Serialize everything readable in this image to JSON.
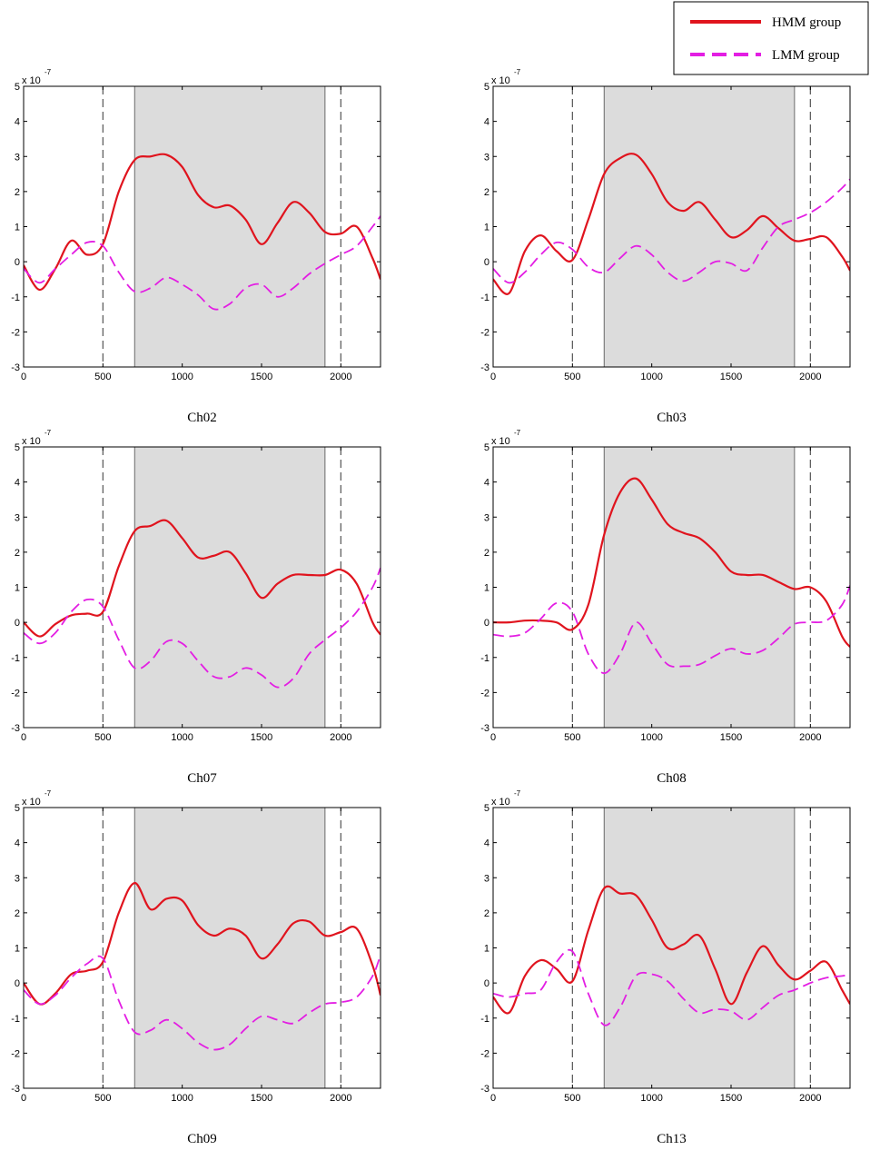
{
  "legend": {
    "entries": [
      {
        "name": "HMM group",
        "color": "#e0141e",
        "style": "solid"
      },
      {
        "name": "LMM group",
        "color": "#e31ee3",
        "style": "dashed"
      }
    ],
    "placement": "top-right"
  },
  "chart_data": [
    {
      "type": "line",
      "title": "Ch02",
      "y_exponent_label": "x 10",
      "y_exponent": "-7",
      "xlim": [
        0,
        2250
      ],
      "ylim": [
        -3,
        5
      ],
      "x_ticks": [
        0,
        500,
        1000,
        1500,
        2000
      ],
      "y_ticks": [
        -3,
        -2,
        -1,
        0,
        1,
        2,
        3,
        4,
        5
      ],
      "shaded_region": [
        700,
        1900
      ],
      "vertical_dashed_lines": [
        500,
        2000
      ],
      "grid": false,
      "series": [
        {
          "name": "HMM group",
          "x": [
            0,
            100,
            200,
            300,
            400,
            500,
            600,
            700,
            800,
            900,
            1000,
            1100,
            1200,
            1300,
            1400,
            1500,
            1600,
            1700,
            1800,
            1900,
            2000,
            2100,
            2200,
            2250
          ],
          "y": [
            -0.1,
            -0.8,
            -0.2,
            0.6,
            0.2,
            0.5,
            2.0,
            2.9,
            3.0,
            3.05,
            2.7,
            1.9,
            1.55,
            1.6,
            1.2,
            0.5,
            1.1,
            1.7,
            1.4,
            0.85,
            0.8,
            1.0,
            0.1,
            -0.5
          ]
        },
        {
          "name": "LMM group",
          "x": [
            0,
            100,
            200,
            300,
            400,
            500,
            600,
            700,
            800,
            900,
            1000,
            1100,
            1200,
            1300,
            1400,
            1500,
            1600,
            1700,
            1800,
            1900,
            2000,
            2100,
            2200,
            2250
          ],
          "y": [
            -0.2,
            -0.6,
            -0.2,
            0.2,
            0.55,
            0.45,
            -0.3,
            -0.85,
            -0.75,
            -0.45,
            -0.65,
            -0.95,
            -1.35,
            -1.2,
            -0.75,
            -0.65,
            -1.0,
            -0.75,
            -0.35,
            -0.05,
            0.2,
            0.45,
            1.0,
            1.3
          ]
        }
      ]
    },
    {
      "type": "line",
      "title": "Ch03",
      "y_exponent_label": "x 10",
      "y_exponent": "-7",
      "xlim": [
        0,
        2250
      ],
      "ylim": [
        -3,
        5
      ],
      "x_ticks": [
        0,
        500,
        1000,
        1500,
        2000
      ],
      "y_ticks": [
        -3,
        -2,
        -1,
        0,
        1,
        2,
        3,
        4,
        5
      ],
      "shaded_region": [
        700,
        1900
      ],
      "vertical_dashed_lines": [
        500,
        2000
      ],
      "grid": false,
      "series": [
        {
          "name": "HMM group",
          "x": [
            0,
            100,
            200,
            300,
            400,
            500,
            600,
            700,
            800,
            900,
            1000,
            1100,
            1200,
            1300,
            1400,
            1500,
            1600,
            1700,
            1800,
            1900,
            2000,
            2100,
            2200,
            2250
          ],
          "y": [
            -0.5,
            -0.9,
            0.3,
            0.75,
            0.3,
            0.05,
            1.2,
            2.5,
            2.95,
            3.05,
            2.5,
            1.7,
            1.45,
            1.7,
            1.2,
            0.7,
            0.9,
            1.3,
            0.95,
            0.6,
            0.65,
            0.7,
            0.15,
            -0.25
          ]
        },
        {
          "name": "LMM group",
          "x": [
            0,
            100,
            200,
            300,
            400,
            500,
            600,
            700,
            800,
            900,
            1000,
            1100,
            1200,
            1300,
            1400,
            1500,
            1600,
            1700,
            1800,
            1900,
            2000,
            2100,
            2200,
            2250
          ],
          "y": [
            -0.2,
            -0.6,
            -0.3,
            0.2,
            0.55,
            0.35,
            -0.15,
            -0.3,
            0.1,
            0.45,
            0.2,
            -0.3,
            -0.55,
            -0.3,
            0.0,
            -0.05,
            -0.25,
            0.4,
            1.0,
            1.2,
            1.4,
            1.7,
            2.1,
            2.35
          ]
        }
      ]
    },
    {
      "type": "line",
      "title": "Ch07",
      "y_exponent_label": "x 10",
      "y_exponent": "-7",
      "xlim": [
        0,
        2250
      ],
      "ylim": [
        -3,
        5
      ],
      "x_ticks": [
        0,
        500,
        1000,
        1500,
        2000
      ],
      "y_ticks": [
        -3,
        -2,
        -1,
        0,
        1,
        2,
        3,
        4,
        5
      ],
      "shaded_region": [
        700,
        1900
      ],
      "vertical_dashed_lines": [
        500,
        2000
      ],
      "grid": false,
      "series": [
        {
          "name": "HMM group",
          "x": [
            0,
            100,
            200,
            300,
            400,
            500,
            600,
            700,
            800,
            900,
            1000,
            1100,
            1200,
            1300,
            1400,
            1500,
            1600,
            1700,
            1800,
            1900,
            2000,
            2100,
            2200,
            2250
          ],
          "y": [
            0.0,
            -0.4,
            -0.05,
            0.2,
            0.25,
            0.3,
            1.6,
            2.6,
            2.75,
            2.9,
            2.4,
            1.85,
            1.9,
            2.0,
            1.4,
            0.7,
            1.1,
            1.35,
            1.35,
            1.35,
            1.5,
            1.1,
            0.0,
            -0.35
          ]
        },
        {
          "name": "LMM group",
          "x": [
            0,
            100,
            200,
            300,
            400,
            500,
            600,
            700,
            800,
            900,
            1000,
            1100,
            1200,
            1300,
            1400,
            1500,
            1600,
            1700,
            1800,
            1900,
            2000,
            2100,
            2200,
            2250
          ],
          "y": [
            -0.3,
            -0.6,
            -0.3,
            0.3,
            0.65,
            0.45,
            -0.5,
            -1.3,
            -1.1,
            -0.55,
            -0.6,
            -1.1,
            -1.55,
            -1.55,
            -1.3,
            -1.5,
            -1.85,
            -1.6,
            -0.9,
            -0.5,
            -0.15,
            0.3,
            1.0,
            1.55
          ]
        }
      ]
    },
    {
      "type": "line",
      "title": "Ch08",
      "y_exponent_label": "x 10",
      "y_exponent": "-7",
      "xlim": [
        0,
        2250
      ],
      "ylim": [
        -3,
        5
      ],
      "x_ticks": [
        0,
        500,
        1000,
        1500,
        2000
      ],
      "y_ticks": [
        -3,
        -2,
        -1,
        0,
        1,
        2,
        3,
        4,
        5
      ],
      "shaded_region": [
        700,
        1900
      ],
      "vertical_dashed_lines": [
        500,
        2000
      ],
      "grid": false,
      "series": [
        {
          "name": "HMM group",
          "x": [
            0,
            100,
            200,
            300,
            400,
            500,
            600,
            700,
            800,
            900,
            1000,
            1100,
            1200,
            1300,
            1400,
            1500,
            1600,
            1700,
            1800,
            1900,
            2000,
            2100,
            2200,
            2250
          ],
          "y": [
            0.0,
            0.0,
            0.05,
            0.05,
            0.0,
            -0.2,
            0.5,
            2.5,
            3.7,
            4.1,
            3.5,
            2.8,
            2.55,
            2.4,
            2.0,
            1.45,
            1.35,
            1.35,
            1.15,
            0.95,
            1.0,
            0.6,
            -0.4,
            -0.7
          ]
        },
        {
          "name": "LMM group",
          "x": [
            0,
            100,
            200,
            300,
            400,
            500,
            600,
            700,
            800,
            900,
            1000,
            1100,
            1200,
            1300,
            1400,
            1500,
            1600,
            1700,
            1800,
            1900,
            2000,
            2100,
            2200,
            2250
          ],
          "y": [
            -0.35,
            -0.4,
            -0.3,
            0.1,
            0.55,
            0.3,
            -0.9,
            -1.45,
            -0.9,
            0.0,
            -0.6,
            -1.2,
            -1.25,
            -1.2,
            -0.95,
            -0.75,
            -0.9,
            -0.8,
            -0.45,
            -0.05,
            0.0,
            0.05,
            0.5,
            1.05
          ]
        }
      ]
    },
    {
      "type": "line",
      "title": "Ch09",
      "y_exponent_label": "x 10",
      "y_exponent": "-7",
      "xlim": [
        0,
        2250
      ],
      "ylim": [
        -3,
        5
      ],
      "x_ticks": [
        0,
        500,
        1000,
        1500,
        2000
      ],
      "y_ticks": [
        -3,
        -2,
        -1,
        0,
        1,
        2,
        3,
        4,
        5
      ],
      "shaded_region": [
        700,
        1900
      ],
      "vertical_dashed_lines": [
        500,
        2000
      ],
      "grid": false,
      "series": [
        {
          "name": "HMM group",
          "x": [
            0,
            100,
            200,
            300,
            400,
            500,
            600,
            700,
            800,
            900,
            1000,
            1100,
            1200,
            1300,
            1400,
            1500,
            1600,
            1700,
            1800,
            1900,
            2000,
            2100,
            2200,
            2250
          ],
          "y": [
            0.0,
            -0.6,
            -0.3,
            0.25,
            0.35,
            0.6,
            2.0,
            2.85,
            2.1,
            2.4,
            2.35,
            1.65,
            1.35,
            1.55,
            1.35,
            0.7,
            1.1,
            1.7,
            1.75,
            1.35,
            1.45,
            1.55,
            0.5,
            -0.35
          ]
        },
        {
          "name": "LMM group",
          "x": [
            0,
            100,
            200,
            300,
            400,
            500,
            600,
            700,
            800,
            900,
            1000,
            1100,
            1200,
            1300,
            1400,
            1500,
            1600,
            1700,
            1800,
            1900,
            2000,
            2100,
            2200,
            2250
          ],
          "y": [
            -0.2,
            -0.6,
            -0.35,
            0.15,
            0.55,
            0.7,
            -0.5,
            -1.4,
            -1.35,
            -1.05,
            -1.3,
            -1.7,
            -1.9,
            -1.75,
            -1.3,
            -0.95,
            -1.05,
            -1.15,
            -0.85,
            -0.6,
            -0.55,
            -0.4,
            0.2,
            0.8
          ]
        }
      ]
    },
    {
      "type": "line",
      "title": "Ch13",
      "y_exponent_label": "x 10",
      "y_exponent": "-7",
      "xlim": [
        0,
        2250
      ],
      "ylim": [
        -3,
        5
      ],
      "x_ticks": [
        0,
        500,
        1000,
        1500,
        2000
      ],
      "y_ticks": [
        -3,
        -2,
        -1,
        0,
        1,
        2,
        3,
        4,
        5
      ],
      "shaded_region": [
        700,
        1900
      ],
      "vertical_dashed_lines": [
        500,
        2000
      ],
      "grid": false,
      "series": [
        {
          "name": "HMM group",
          "x": [
            0,
            100,
            200,
            300,
            400,
            500,
            600,
            700,
            800,
            900,
            1000,
            1100,
            1200,
            1300,
            1400,
            1500,
            1600,
            1700,
            1800,
            1900,
            2000,
            2100,
            2200,
            2250
          ],
          "y": [
            -0.4,
            -0.85,
            0.2,
            0.65,
            0.4,
            0.05,
            1.5,
            2.7,
            2.55,
            2.5,
            1.8,
            1.0,
            1.1,
            1.35,
            0.4,
            -0.6,
            0.3,
            1.05,
            0.5,
            0.1,
            0.35,
            0.6,
            -0.2,
            -0.6
          ]
        },
        {
          "name": "LMM group",
          "x": [
            0,
            100,
            200,
            300,
            400,
            500,
            600,
            700,
            800,
            900,
            1000,
            1100,
            1200,
            1300,
            1400,
            1500,
            1600,
            1700,
            1800,
            1900,
            2000,
            2100,
            2200,
            2250
          ],
          "y": [
            -0.3,
            -0.4,
            -0.3,
            -0.2,
            0.6,
            0.9,
            -0.3,
            -1.2,
            -0.7,
            0.2,
            0.25,
            0.05,
            -0.45,
            -0.85,
            -0.75,
            -0.8,
            -1.05,
            -0.7,
            -0.35,
            -0.2,
            0.0,
            0.15,
            0.2,
            0.25
          ]
        }
      ]
    }
  ]
}
